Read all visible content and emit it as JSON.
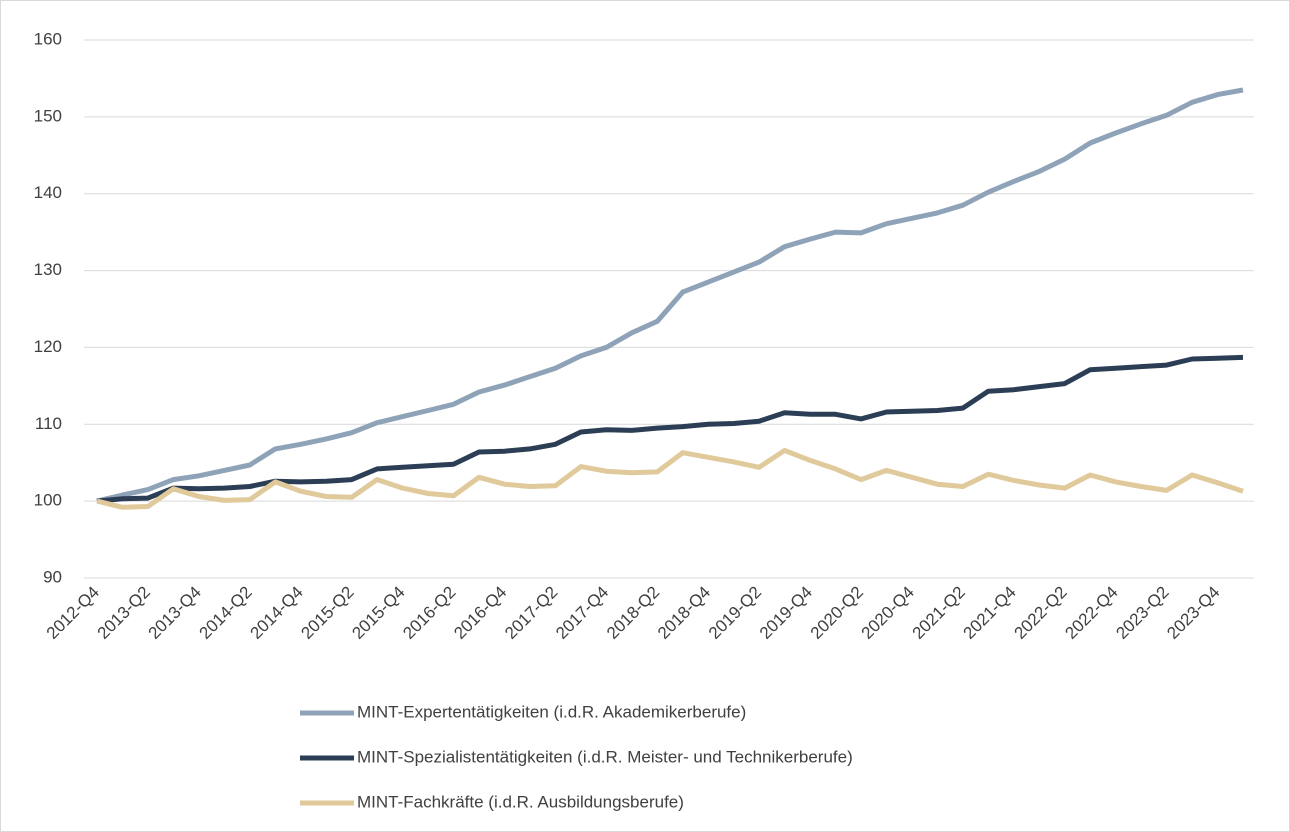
{
  "chart_data": {
    "type": "line",
    "categories": [
      "2012-Q4",
      null,
      "2013-Q2",
      null,
      "2013-Q4",
      null,
      "2014-Q2",
      null,
      "2014-Q4",
      null,
      "2015-Q2",
      null,
      "2015-Q4",
      null,
      "2016-Q2",
      null,
      "2016-Q4",
      null,
      "2017-Q2",
      null,
      "2017-Q4",
      null,
      "2018-Q2",
      null,
      "2018-Q4",
      null,
      "2019-Q2",
      null,
      "2019-Q4",
      null,
      "2020-Q2",
      null,
      "2020-Q4",
      null,
      "2021-Q2",
      null,
      "2021-Q4",
      null,
      "2022-Q2",
      null,
      "2022-Q4",
      null,
      "2023-Q2",
      null,
      "2023-Q4",
      null
    ],
    "series": [
      {
        "name": "MINT-Expertentätigkeiten (i.d.R. Akademikerberufe)",
        "color": "#8fa3b8",
        "values": [
          100,
          100.8,
          101.5,
          102.8,
          103.3,
          104,
          104.7,
          106.8,
          107.4,
          108.1,
          108.9,
          110.2,
          111,
          111.8,
          112.6,
          114.2,
          115.1,
          116.2,
          117.3,
          118.9,
          120,
          121.9,
          123.4,
          127.2,
          128.5,
          129.8,
          131.1,
          133.1,
          134.1,
          135,
          134.9,
          136.1,
          136.8,
          137.5,
          138.5,
          140.2,
          141.6,
          142.9,
          144.5,
          146.6,
          147.9,
          149.1,
          150.2,
          151.9,
          152.9,
          153.5
        ]
      },
      {
        "name": "MINT-Spezialistentätigkeiten (i.d.R. Meister- und Technikerberufe)",
        "color": "#2c3e55",
        "values": [
          100,
          100.3,
          100.4,
          101.7,
          101.6,
          101.7,
          101.9,
          102.6,
          102.5,
          102.6,
          102.8,
          104.2,
          104.4,
          104.6,
          104.8,
          106.4,
          106.5,
          106.8,
          107.4,
          109,
          109.3,
          109.2,
          109.5,
          109.7,
          110,
          110.1,
          110.4,
          111.5,
          111.3,
          111.3,
          110.7,
          111.6,
          111.7,
          111.8,
          112.1,
          114.3,
          114.5,
          114.9,
          115.3,
          117.1,
          117.3,
          117.5,
          117.7,
          118.5,
          118.6,
          118.7
        ]
      },
      {
        "name": "MINT-Fachkräfte (i.d.R. Ausbildungsberufe)",
        "color": "#e0c99a",
        "values": [
          100,
          99.2,
          99.3,
          101.6,
          100.6,
          100.1,
          100.2,
          102.5,
          101.3,
          100.6,
          100.5,
          102.8,
          101.7,
          101,
          100.7,
          103.1,
          102.2,
          101.9,
          102,
          104.5,
          103.9,
          103.7,
          103.8,
          106.3,
          105.7,
          105.1,
          104.4,
          106.6,
          105.3,
          104.2,
          102.8,
          104,
          103.1,
          102.2,
          101.9,
          103.5,
          102.7,
          102.1,
          101.7,
          103.4,
          102.5,
          101.9,
          101.4,
          103.4,
          102.4,
          101.3
        ]
      }
    ],
    "ylim": [
      90,
      160
    ],
    "yticks": [
      90,
      100,
      110,
      120,
      130,
      140,
      150,
      160
    ],
    "grid": true,
    "legend": "bottom"
  }
}
